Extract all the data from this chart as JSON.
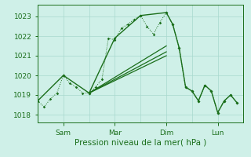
{
  "xlabel": "Pression niveau de la mer( hPa )",
  "background_color": "#cff0e8",
  "grid_color": "#a8d8ce",
  "line_color": "#1a6e1a",
  "text_color": "#1a6e1a",
  "ylim": [
    1017.6,
    1023.6
  ],
  "xlim": [
    0,
    96
  ],
  "yticks": [
    1018,
    1019,
    1020,
    1021,
    1022,
    1023
  ],
  "xtick_positions": [
    12,
    36,
    60,
    84
  ],
  "xtick_labels": [
    "Sam",
    "Mar",
    "Dim",
    "Lun"
  ],
  "xtick_minor_positions": [
    0,
    12,
    24,
    36,
    48,
    60,
    72,
    84,
    96
  ],
  "series1_x": [
    0,
    3,
    6,
    9,
    12,
    15,
    18,
    21,
    24,
    27,
    30,
    33,
    36,
    39,
    42,
    45,
    48,
    51,
    54,
    57,
    60,
    63,
    66,
    69,
    72,
    75,
    78,
    81,
    84,
    87,
    90,
    93
  ],
  "series1_y": [
    1018.7,
    1018.4,
    1018.8,
    1019.1,
    1020.0,
    1019.6,
    1019.4,
    1019.1,
    1019.1,
    1019.4,
    1019.8,
    1021.9,
    1021.8,
    1022.4,
    1022.6,
    1022.85,
    1023.05,
    1022.5,
    1022.1,
    1022.7,
    1023.2,
    1022.6,
    1021.4,
    1019.4,
    1019.2,
    1018.7,
    1019.5,
    1019.2,
    1018.1,
    1018.7,
    1019.0,
    1018.6
  ],
  "series2_x": [
    0,
    12,
    24,
    36,
    48,
    60,
    63,
    66,
    69,
    72,
    75,
    78,
    81,
    84,
    87,
    90,
    93
  ],
  "series2_y": [
    1018.7,
    1020.0,
    1019.1,
    1021.9,
    1023.05,
    1023.2,
    1022.6,
    1021.4,
    1019.4,
    1019.2,
    1018.7,
    1019.5,
    1019.2,
    1018.1,
    1018.7,
    1019.0,
    1018.6
  ],
  "trend1_x": [
    24,
    60
  ],
  "trend1_y": [
    1019.1,
    1021.5
  ],
  "trend2_x": [
    24,
    60
  ],
  "trend2_y": [
    1019.1,
    1021.2
  ],
  "trend3_x": [
    24,
    60
  ],
  "trend3_y": [
    1019.1,
    1021.0
  ]
}
